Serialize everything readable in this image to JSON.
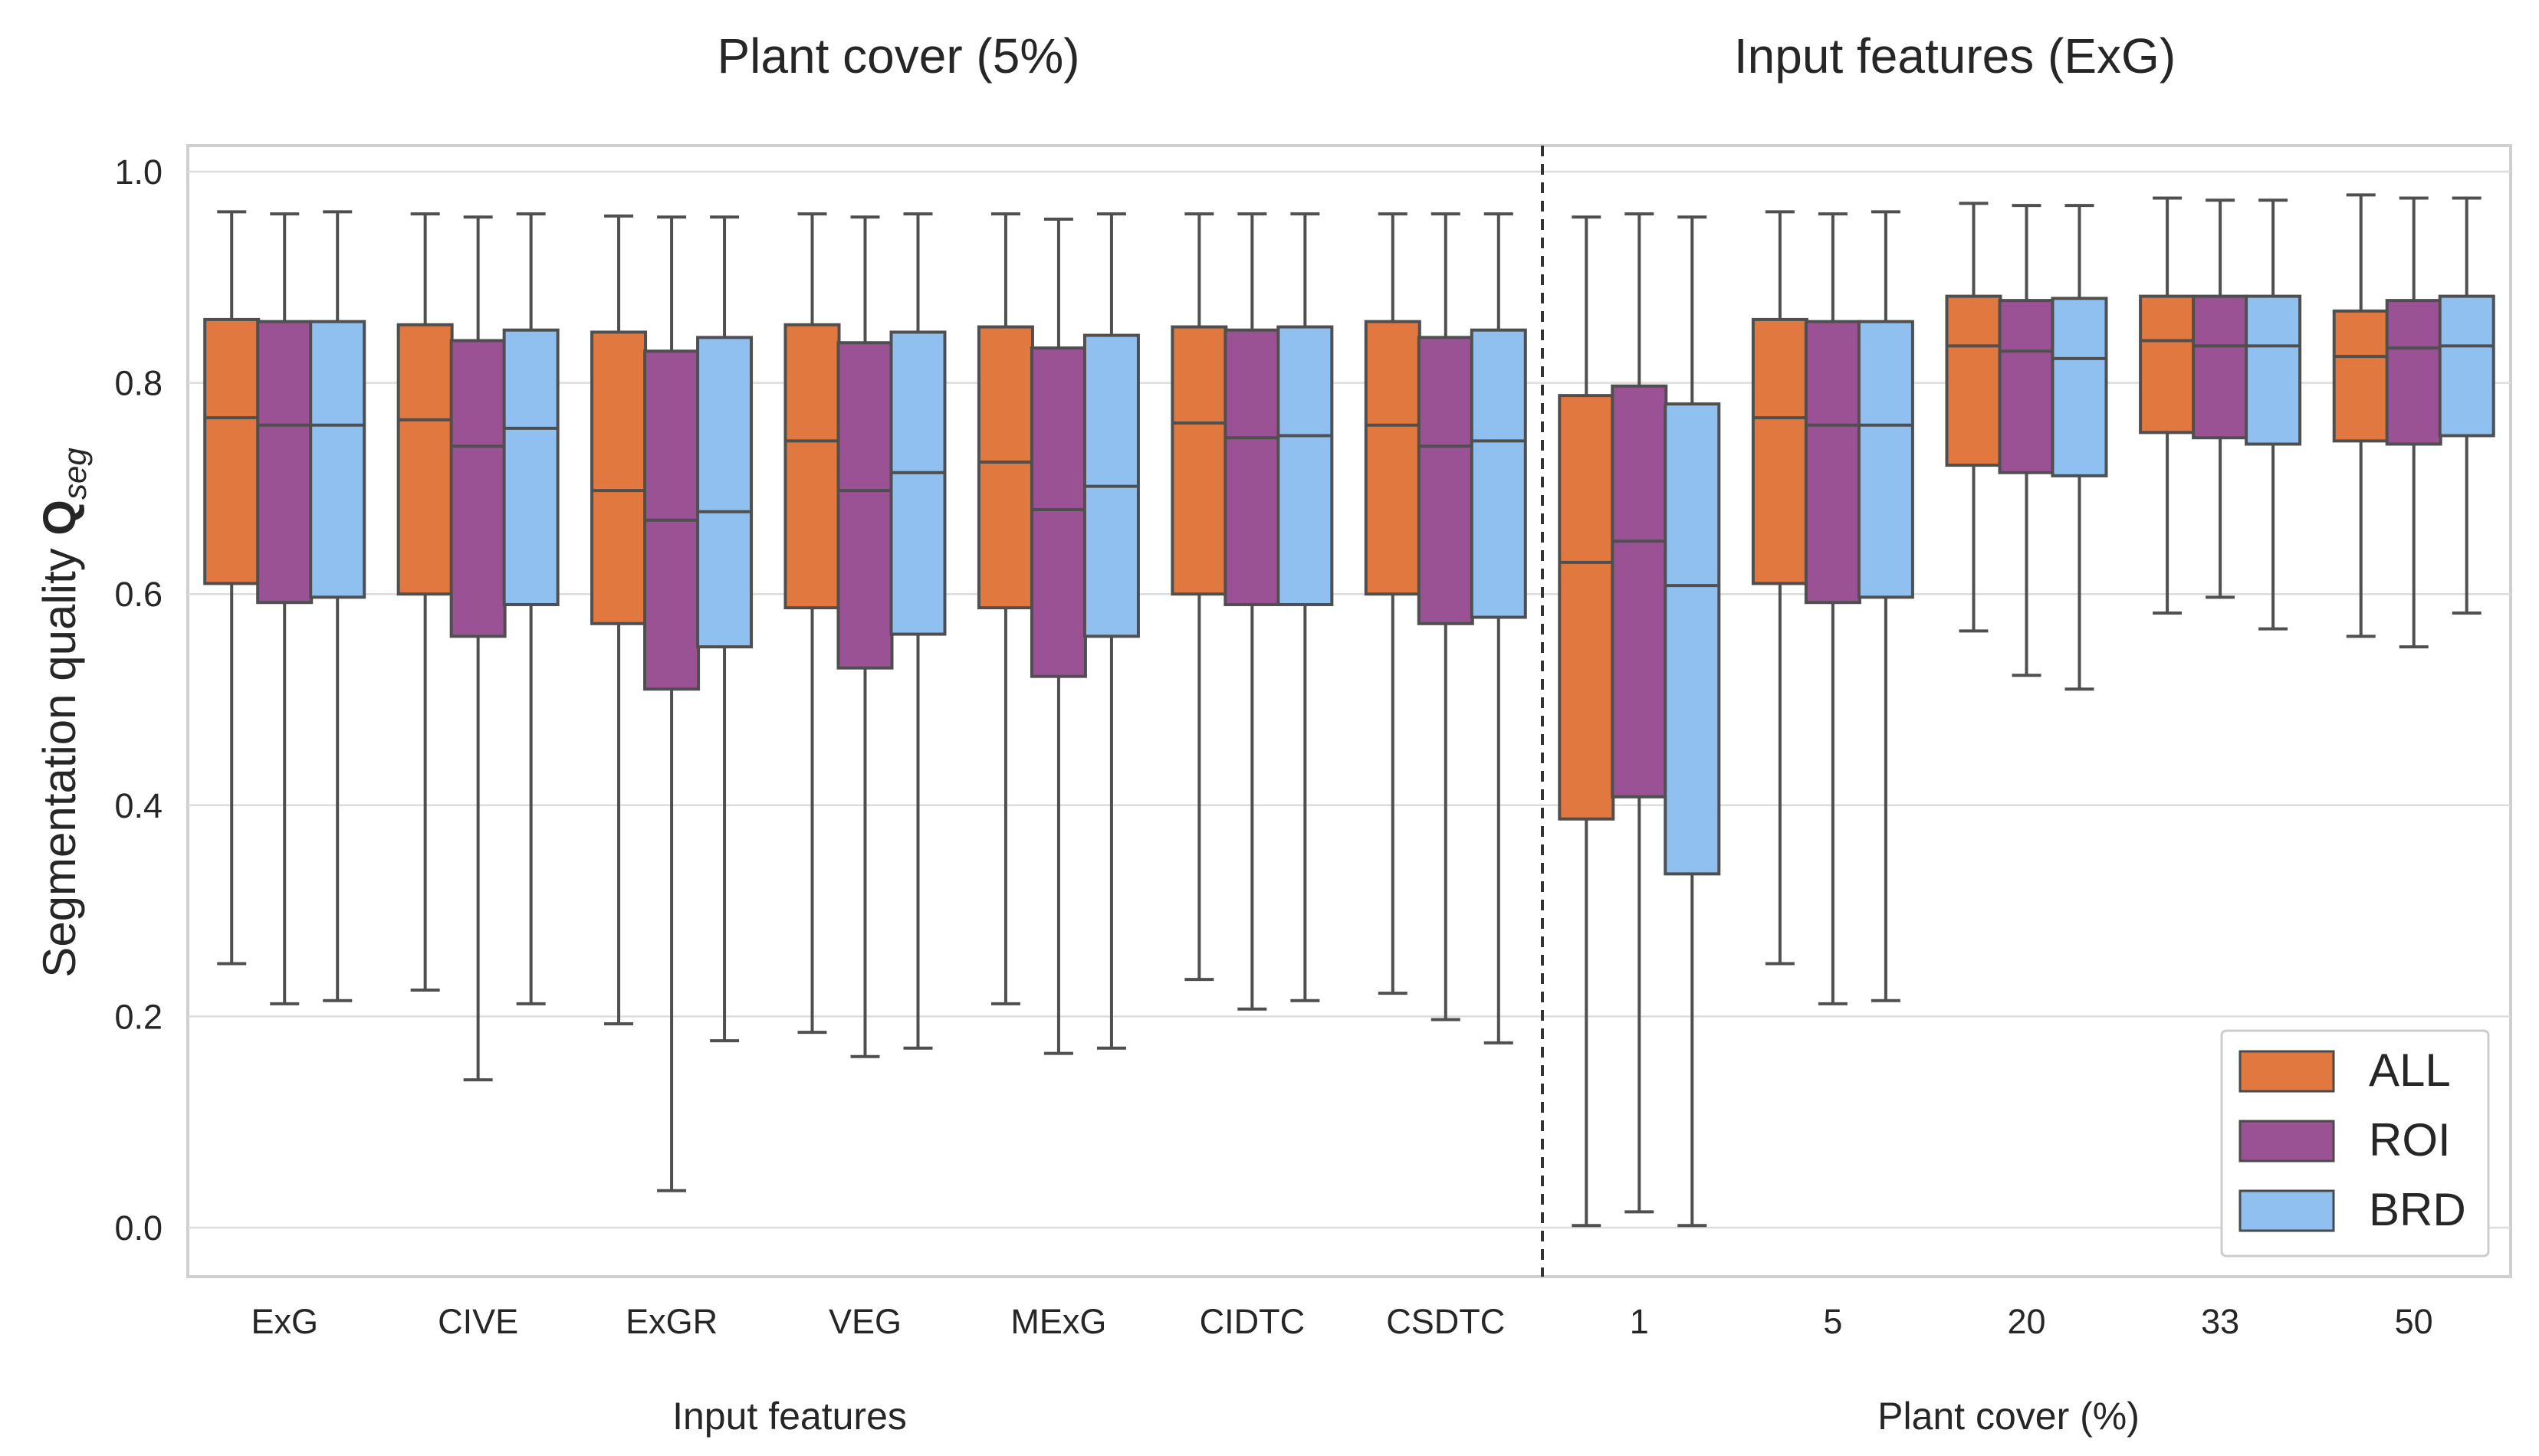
{
  "chart_data": {
    "type": "box",
    "ylabel_main": "Segmentation quality ",
    "ylabel_bold": "Q",
    "ylabel_sub": "seg",
    "ylim": [
      -0.05,
      1.03
    ],
    "yticks": [
      "0.0",
      "0.2",
      "0.4",
      "0.6",
      "0.8",
      "1.0"
    ],
    "ytick_values": [
      0.0,
      0.2,
      0.4,
      0.6,
      0.8,
      1.0
    ],
    "grid": true,
    "legend_position": "bottom-right",
    "series": [
      {
        "name": "ALL",
        "color": "#e1783f"
      },
      {
        "name": "ROI",
        "color": "#9a5294"
      },
      {
        "name": "BRD",
        "color": "#8fc0ef"
      }
    ],
    "panels": [
      {
        "title": "Plant cover (5%)",
        "xlabel": "Input features",
        "categories": [
          "ExG",
          "CIVE",
          "ExGR",
          "VEG",
          "MExG",
          "CIDTC",
          "CSDTC"
        ],
        "boxes": [
          [
            [
              0.25,
              0.61,
              0.767,
              0.86,
              0.962
            ],
            [
              0.212,
              0.592,
              0.76,
              0.858,
              0.96
            ],
            [
              0.215,
              0.597,
              0.76,
              0.858,
              0.962
            ]
          ],
          [
            [
              0.225,
              0.6,
              0.765,
              0.855,
              0.96
            ],
            [
              0.14,
              0.56,
              0.74,
              0.84,
              0.957
            ],
            [
              0.212,
              0.59,
              0.757,
              0.85,
              0.96
            ]
          ],
          [
            [
              0.193,
              0.572,
              0.698,
              0.848,
              0.958
            ],
            [
              0.035,
              0.51,
              0.67,
              0.83,
              0.957
            ],
            [
              0.177,
              0.55,
              0.678,
              0.843,
              0.957
            ]
          ],
          [
            [
              0.185,
              0.587,
              0.745,
              0.855,
              0.96
            ],
            [
              0.162,
              0.53,
              0.698,
              0.838,
              0.957
            ],
            [
              0.17,
              0.562,
              0.715,
              0.848,
              0.96
            ]
          ],
          [
            [
              0.212,
              0.587,
              0.725,
              0.853,
              0.96
            ],
            [
              0.165,
              0.522,
              0.68,
              0.833,
              0.955
            ],
            [
              0.17,
              0.56,
              0.702,
              0.845,
              0.96
            ]
          ],
          [
            [
              0.235,
              0.6,
              0.762,
              0.853,
              0.96
            ],
            [
              0.207,
              0.59,
              0.748,
              0.85,
              0.96
            ],
            [
              0.215,
              0.59,
              0.75,
              0.853,
              0.96
            ]
          ],
          [
            [
              0.222,
              0.6,
              0.76,
              0.858,
              0.96
            ],
            [
              0.197,
              0.572,
              0.74,
              0.843,
              0.96
            ],
            [
              0.175,
              0.578,
              0.745,
              0.85,
              0.96
            ]
          ]
        ]
      },
      {
        "title": "Input features (ExG)",
        "xlabel": "Plant cover (%)",
        "categories": [
          "1",
          "5",
          "20",
          "33",
          "50"
        ],
        "boxes": [
          [
            [
              0.002,
              0.387,
              0.63,
              0.788,
              0.957
            ],
            [
              0.015,
              0.408,
              0.65,
              0.797,
              0.96
            ],
            [
              0.002,
              0.335,
              0.608,
              0.78,
              0.957
            ]
          ],
          [
            [
              0.25,
              0.61,
              0.767,
              0.86,
              0.962
            ],
            [
              0.212,
              0.592,
              0.76,
              0.858,
              0.96
            ],
            [
              0.215,
              0.597,
              0.76,
              0.858,
              0.962
            ]
          ],
          [
            [
              0.565,
              0.722,
              0.835,
              0.882,
              0.97
            ],
            [
              0.523,
              0.715,
              0.83,
              0.878,
              0.968
            ],
            [
              0.51,
              0.712,
              0.823,
              0.88,
              0.968
            ]
          ],
          [
            [
              0.582,
              0.753,
              0.84,
              0.882,
              0.975
            ],
            [
              0.597,
              0.748,
              0.835,
              0.882,
              0.973
            ],
            [
              0.567,
              0.742,
              0.835,
              0.882,
              0.973
            ]
          ],
          [
            [
              0.56,
              0.745,
              0.825,
              0.868,
              0.978
            ],
            [
              0.55,
              0.742,
              0.833,
              0.878,
              0.975
            ],
            [
              0.582,
              0.75,
              0.835,
              0.882,
              0.975
            ]
          ]
        ]
      }
    ]
  }
}
